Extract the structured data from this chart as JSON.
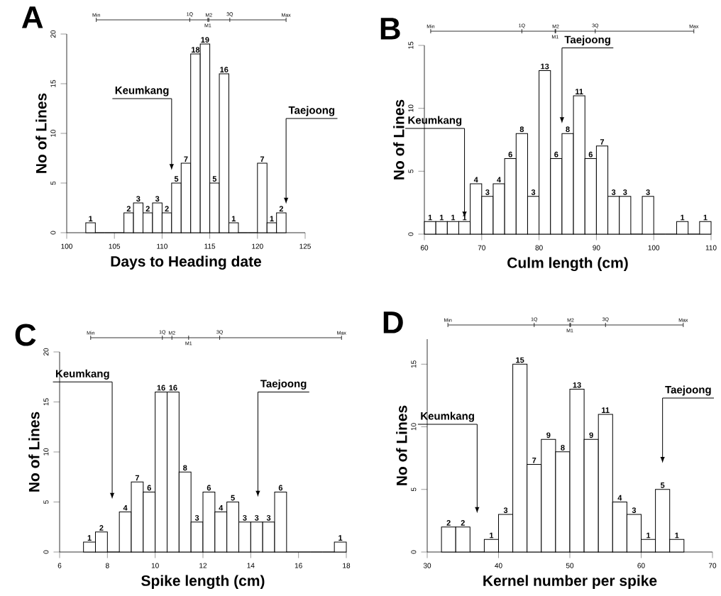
{
  "chart_data": [
    {
      "type": "histogram",
      "title": "A",
      "xlabel": "Days to Heading date",
      "ylabel": "No of Lines",
      "color": "#ffffff",
      "bins": [
        102,
        103,
        104,
        105,
        106,
        107,
        108,
        109,
        110,
        111,
        112,
        113,
        114,
        115,
        116,
        117,
        118,
        119,
        120,
        121,
        122,
        123
      ],
      "values": [
        1,
        0,
        0,
        0,
        2,
        3,
        2,
        3,
        2,
        5,
        7,
        18,
        19,
        5,
        16,
        1,
        0,
        0,
        7,
        1,
        2
      ],
      "value_labels": [
        "1",
        null,
        null,
        null,
        "2",
        "3",
        "2",
        "3",
        "2",
        "5",
        "7",
        "18",
        "19",
        "5",
        "16",
        "1",
        null,
        null,
        "7",
        "1",
        "2"
      ],
      "xlim": [
        100,
        125
      ],
      "xticks": [
        100,
        105,
        110,
        115,
        120,
        125
      ],
      "ylim": [
        0,
        20
      ],
      "yticks": [
        0,
        5,
        10,
        15,
        20
      ],
      "annotations": [
        "Min",
        "1Q",
        "M2",
        "3Q",
        "Max",
        "M1",
        "Keumkang",
        "Taejoong"
      ]
    },
    {
      "type": "histogram",
      "title": "B",
      "xlabel": "Culm length (cm)",
      "ylabel": "No of Lines",
      "color": "#ffffff",
      "bins": [
        60,
        62,
        64,
        66,
        68,
        70,
        72,
        74,
        76,
        78,
        80,
        82,
        84,
        86,
        88,
        90,
        92,
        94,
        96,
        98,
        100,
        102,
        104,
        106,
        108,
        110
      ],
      "values": [
        1,
        1,
        1,
        1,
        4,
        3,
        4,
        6,
        8,
        3,
        13,
        6,
        8,
        11,
        6,
        7,
        3,
        3,
        0,
        3,
        0,
        0,
        1,
        0,
        1
      ],
      "value_labels": [
        "1",
        "1",
        "1",
        "1",
        "4",
        "3",
        "4",
        "6",
        "8",
        "3",
        "13",
        "6",
        "8",
        "11",
        "6",
        "7",
        "3",
        "3",
        null,
        "3",
        null,
        null,
        "1",
        null,
        "1"
      ],
      "xlim": [
        60,
        110
      ],
      "xticks": [
        60,
        70,
        80,
        90,
        100,
        110
      ],
      "ylim": [
        0,
        15
      ],
      "yticks": [
        0,
        5,
        10,
        15
      ],
      "annotations": [
        "Min",
        "1Q",
        "M2",
        "3Q",
        "Max",
        "M1",
        "Keumkang",
        "Taejoong"
      ]
    },
    {
      "type": "histogram",
      "title": "C",
      "xlabel": "Spike length (cm)",
      "ylabel": "No of Lines",
      "color": "#ffffff",
      "bins": [
        7,
        7.5,
        8,
        8.5,
        9,
        9.5,
        10,
        10.5,
        11,
        11.5,
        12,
        12.5,
        13,
        13.5,
        14,
        14.5,
        15,
        15.5,
        16,
        16.5,
        17,
        17.5,
        18
      ],
      "values": [
        1,
        2,
        0,
        4,
        7,
        6,
        16,
        16,
        8,
        3,
        6,
        4,
        5,
        3,
        3,
        3,
        6,
        0,
        0,
        0,
        0,
        1
      ],
      "value_labels": [
        "1",
        "2",
        null,
        "4",
        "7",
        "6",
        "16",
        "16",
        "8",
        "3",
        "6",
        "4",
        "5",
        "3",
        "3",
        "3",
        "6",
        null,
        null,
        null,
        null,
        "1"
      ],
      "xlim": [
        6,
        18
      ],
      "xticks": [
        6,
        8,
        10,
        12,
        14,
        16,
        18
      ],
      "ylim": [
        0,
        20
      ],
      "yticks": [
        0,
        5,
        10,
        15,
        20
      ],
      "annotations": [
        "Min",
        "1Q",
        "M2",
        "3Q",
        "Max",
        "M1",
        "Keumkang",
        "Taejoong"
      ]
    },
    {
      "type": "histogram",
      "title": "D",
      "xlabel": "Kernel number per spike",
      "ylabel": "No of Lines",
      "color": "#ffffff",
      "bins": [
        32,
        34,
        36,
        38,
        40,
        42,
        44,
        46,
        48,
        50,
        52,
        54,
        56,
        58,
        60,
        62,
        64,
        66
      ],
      "values": [
        2,
        2,
        0,
        1,
        3,
        15,
        7,
        9,
        8,
        13,
        9,
        11,
        4,
        3,
        1,
        5,
        1
      ],
      "value_labels": [
        "2",
        "2",
        null,
        "1",
        "3",
        "15",
        "7",
        "9",
        "8",
        "13",
        "9",
        "11",
        "4",
        "3",
        "1",
        "5",
        "1"
      ],
      "xlim": [
        30,
        70
      ],
      "xticks": [
        30,
        40,
        50,
        60,
        70
      ],
      "ylim": [
        0,
        17
      ],
      "yticks": [
        0,
        5,
        10,
        15
      ],
      "annotations": [
        "Min",
        "1Q",
        "M2",
        "3Q",
        "Max",
        "M1",
        "Keumkang",
        "Taejoong"
      ]
    }
  ]
}
